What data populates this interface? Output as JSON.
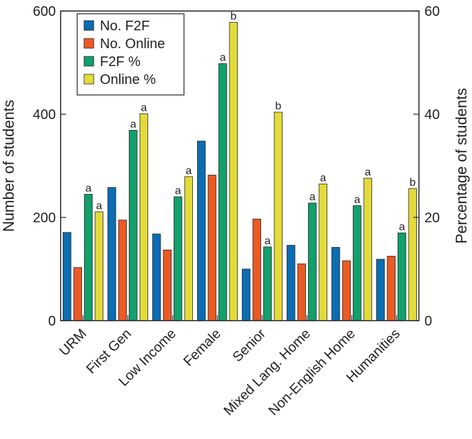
{
  "chart_data": {
    "type": "bar",
    "categories": [
      "URM",
      "First Gen",
      "Low Income",
      "Female",
      "Senior",
      "Mixed Lang. Home",
      "Non-English Home",
      "Humanities"
    ],
    "series": [
      {
        "name": "No. F2F",
        "axis": "left",
        "color": "#0b6db3",
        "values": [
          171,
          258,
          168,
          348,
          100,
          146,
          142,
          119
        ]
      },
      {
        "name": "No. Online",
        "axis": "left",
        "color": "#ec5a24",
        "values": [
          103,
          195,
          137,
          282,
          197,
          110,
          116,
          125
        ]
      },
      {
        "name": "F2F %",
        "axis": "right",
        "color": "#12a06b",
        "values": [
          24.5,
          36.9,
          24.0,
          49.8,
          14.3,
          22.8,
          22.3,
          17.0
        ]
      },
      {
        "name": "Online %",
        "axis": "right",
        "color": "#e3db3a",
        "values": [
          21.1,
          40.1,
          27.9,
          57.8,
          40.4,
          26.5,
          27.6,
          25.6
        ]
      }
    ],
    "significance": {
      "F2F %": [
        "a",
        "a",
        "a",
        "a",
        "a",
        "a",
        "a",
        "a"
      ],
      "Online %": [
        "a",
        "a",
        "a",
        "b",
        "b",
        "a",
        "a",
        "b"
      ]
    },
    "ylabel": "Number of students",
    "ylim": [
      0,
      600
    ],
    "yticks": [
      0,
      200,
      400,
      600
    ],
    "y2label": "Percentage of students",
    "y2lim": [
      0,
      60
    ],
    "y2ticks": [
      0,
      20,
      40,
      60
    ],
    "legend_position": "top-left",
    "grid": false
  }
}
